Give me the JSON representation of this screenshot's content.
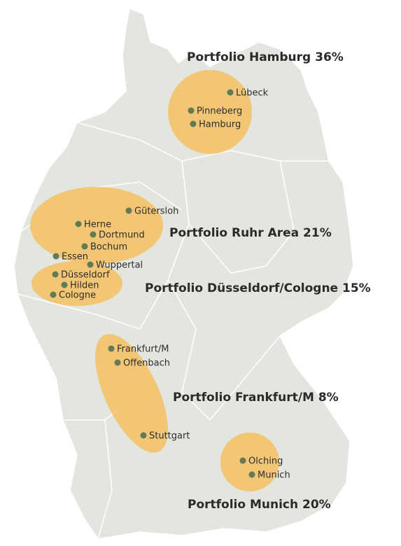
{
  "portfolios": [
    {
      "label": "Portfolio Hamburg 36%"
    },
    {
      "label": "Portfolio Ruhr Area 21%"
    },
    {
      "label": "Portfolio Düsseldorf/Cologne 15%"
    },
    {
      "label": "Portfolio Frankfurt/M 8%"
    },
    {
      "label": "Portfolio Munich 20%"
    }
  ],
  "cities": [
    "Lübeck",
    "Pinneberg",
    "Hamburg",
    "Gütersloh",
    "Herne",
    "Dortmund",
    "Bochum",
    "Essen",
    "Wuppertal",
    "Düsseldorf",
    "Hilden",
    "Cologne",
    "Frankfurt/M",
    "Offenbach",
    "Stuttgart",
    "Olching",
    "Munich"
  ]
}
